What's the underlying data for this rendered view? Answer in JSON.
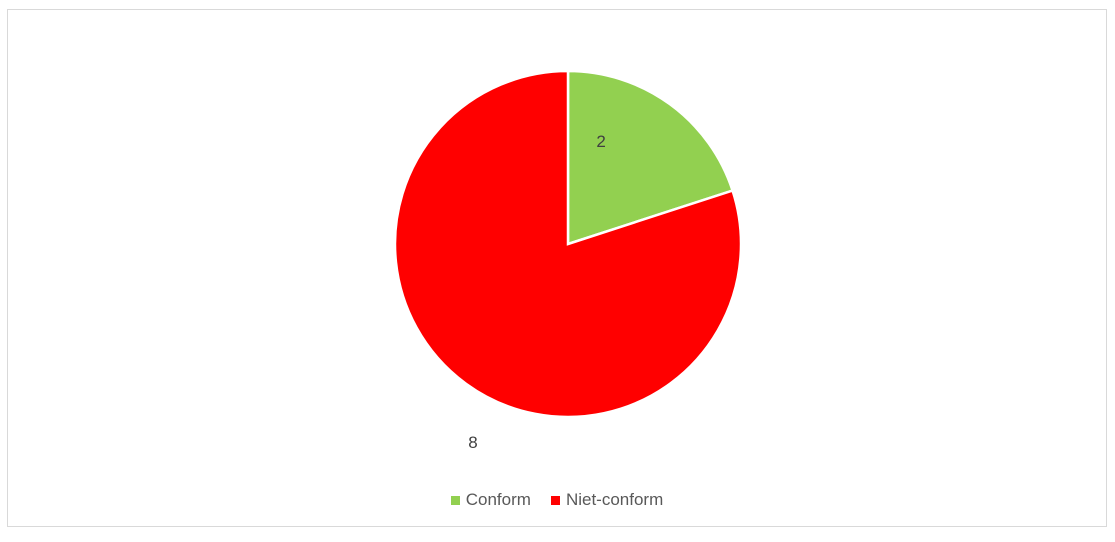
{
  "chart_data": {
    "type": "pie",
    "categories": [
      "Conform",
      "Niet-conform"
    ],
    "values": [
      2,
      8
    ],
    "colors": [
      "#92d050",
      "#ff0000"
    ],
    "data_labels": [
      "2",
      "8"
    ],
    "legend_position": "bottom",
    "title": ""
  }
}
